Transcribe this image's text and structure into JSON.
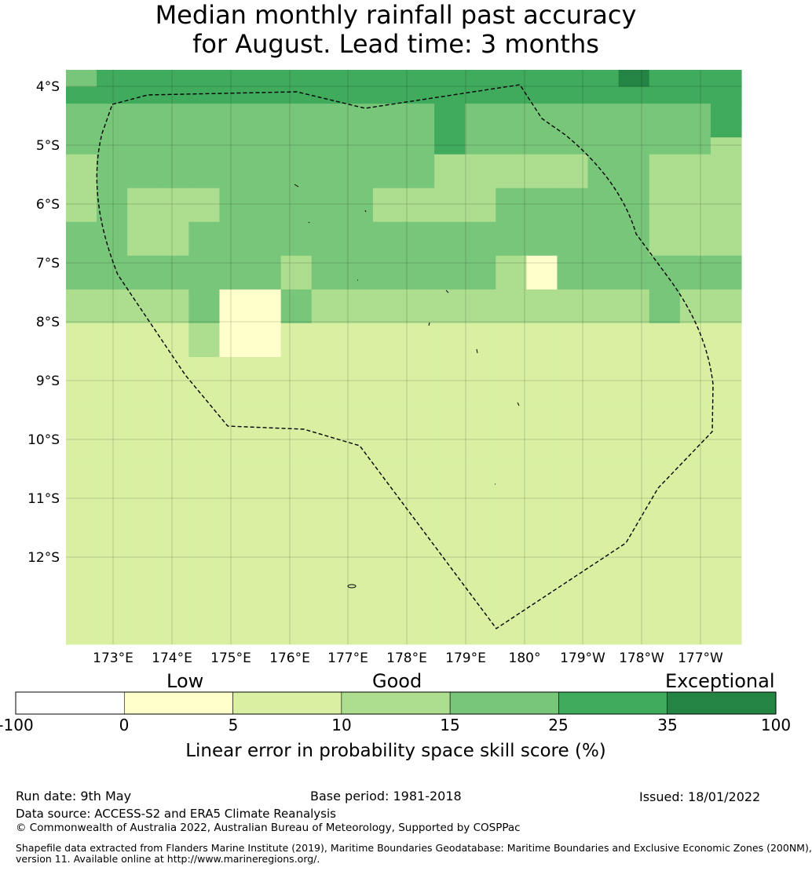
{
  "title_line1": "Median monthly rainfall past accuracy",
  "title_line2": "for August. Lead time: 3 months",
  "map": {
    "lat_labels": [
      "4°S",
      "5°S",
      "6°S",
      "7°S",
      "8°S",
      "9°S",
      "10°S",
      "11°S",
      "12°S"
    ],
    "lon_labels": [
      "173°E",
      "174°E",
      "175°E",
      "176°E",
      "177°E",
      "178°E",
      "179°E",
      "180°",
      "179°W",
      "178°W",
      "177°W"
    ],
    "grid": [
      "4555555555555555556555",
      "5555555555555555555555",
      "4444444444445444444445",
      "4444444444445444444445",
      "4444444444445444444443",
      "3444444444443333344333",
      "3444444444443333344333",
      "3433344444333344444333",
      "3433344444333344444333",
      "4433444444444444444333",
      "4433444444444444444333",
      "4444444344444431444444",
      "4444444344444431444444",
      "3333411433333333333433",
      "3333411433333333333433",
      "2222311222222222222222",
      "2222311222222222222222",
      "2222222222222222222222",
      "2222222222222222222222",
      "2222222222222222222222",
      "2222222222222222222222",
      "2222222222222222222222",
      "2222222222222222222222",
      "2222222222222222222222",
      "2222222222222222222222",
      "2222222222222222222222",
      "2222222222222222222222",
      "2222222222222222222222",
      "2222222222222222222222",
      "2222222222222222222222",
      "2222222222222222222222",
      "2222222222222222222222",
      "2222222222222222222222",
      "2222222222222222222222"
    ]
  },
  "colorbar": {
    "categories": [
      "Low",
      "Good",
      "Exceptional"
    ],
    "ticks": [
      "-100",
      "0",
      "5",
      "10",
      "15",
      "25",
      "35",
      "100"
    ],
    "colors": [
      "#ffffff",
      "#ffffcc",
      "#d9f0a3",
      "#addd8e",
      "#78c679",
      "#41ab5d",
      "#238443"
    ],
    "title": "Linear error in probability space skill score (%)"
  },
  "footer": {
    "run_date": "Run date: 9th May",
    "base_period": "Base period: 1981-2018",
    "issued": "Issued: 18/01/2022",
    "data_source": "Data source: ACCESS-S2 and ERA5 Climate Reanalysis",
    "copyright": "© Commonwealth of Australia 2022, Australian Bureau of Meteorology, Supported by COSPPac",
    "shapefile_line1": "Shapefile data extracted from Flanders Marine Institute (2019), Maritime Boundaries Geodatabase: Maritime Boundaries and Exclusive Economic Zones (200NM),",
    "shapefile_line2": "version 11. Available online at http://www.marineregions.org/."
  }
}
